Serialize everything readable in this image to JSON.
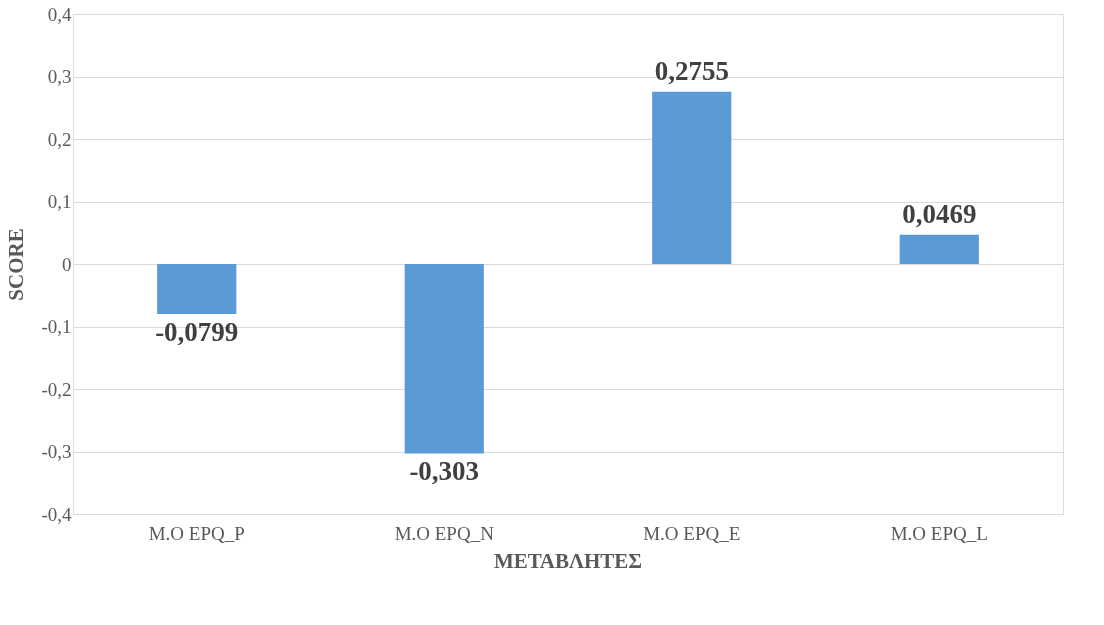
{
  "chart_data": {
    "type": "bar",
    "xlabel": "ΜΕΤΑΒΛΗΤΕΣ",
    "ylabel": "SCORE",
    "categories": [
      "M.O EPQ_P",
      "M.O EPQ_N",
      "M.O EPQ_E",
      "M.O EPQ_L"
    ],
    "values": [
      -0.0799,
      -0.303,
      0.2755,
      0.0469
    ],
    "value_labels": [
      "-0,0799",
      "-0,303",
      "0,2755",
      "0,0469"
    ],
    "color": "#5b9bd5",
    "ylim": [
      -0.4,
      0.4
    ],
    "yticks": [
      {
        "value": -0.4,
        "label": "-0,4"
      },
      {
        "value": -0.3,
        "label": "-0,3"
      },
      {
        "value": -0.2,
        "label": "-0,2"
      },
      {
        "value": -0.1,
        "label": "-0,1"
      },
      {
        "value": 0,
        "label": "0"
      },
      {
        "value": 0.1,
        "label": "0,1"
      },
      {
        "value": 0.2,
        "label": "0,2"
      },
      {
        "value": 0.3,
        "label": "0,3"
      },
      {
        "value": 0.4,
        "label": "0,4"
      }
    ],
    "grid": "y"
  }
}
